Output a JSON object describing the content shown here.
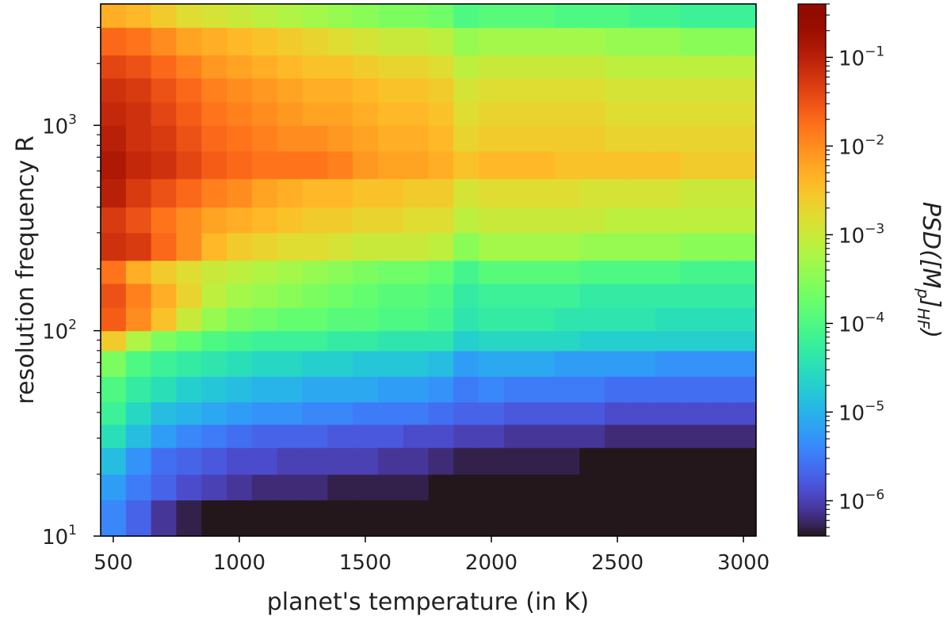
{
  "chart_data": {
    "type": "heatmap",
    "title": "",
    "xlabel": "planet's temperature (in K)",
    "ylabel": "resolution frequency R",
    "colorbar_label": "PSD([M_p]_HF)",
    "colorbar_label_parts": {
      "base": "PSD([M",
      "sub1": "p",
      "mid": "]",
      "sub2": "HF",
      "end": ")"
    },
    "colormap": "turbo",
    "xlim": [
      450,
      3050
    ],
    "x_ticks": [
      500,
      1000,
      1500,
      2000,
      2500,
      3000
    ],
    "x_tick_labels": [
      "500",
      "1000",
      "1500",
      "2000",
      "2500",
      "3000"
    ],
    "ylim": [
      10,
      3900
    ],
    "y_scale": "log",
    "y_major_ticks": [
      {
        "value": 10,
        "base": "10",
        "exp": "1"
      },
      {
        "value": 100,
        "base": "10",
        "exp": "2"
      },
      {
        "value": 1000,
        "base": "10",
        "exp": "3"
      }
    ],
    "colorbar_range": [
      4e-07,
      0.4
    ],
    "colorbar_scale": "log",
    "colorbar_ticks": [
      {
        "value": 0.1,
        "base": "10",
        "exp": "−1"
      },
      {
        "value": 0.01,
        "base": "10",
        "exp": "−2"
      },
      {
        "value": 0.001,
        "base": "10",
        "exp": "−3"
      },
      {
        "value": 0.0001,
        "base": "10",
        "exp": "−4"
      },
      {
        "value": 1e-05,
        "base": "10",
        "exp": "−5"
      },
      {
        "value": 1e-06,
        "base": "10",
        "exp": "−6"
      }
    ],
    "temperatures": [
      500,
      600,
      700,
      800,
      900,
      1000,
      1100,
      1200,
      1300,
      1400,
      1500,
      1600,
      1700,
      1800,
      1900,
      2000,
      2100,
      2200,
      2300,
      2400,
      2500,
      2600,
      2700,
      2800,
      2900,
      3000
    ],
    "frequency_edges": [
      10,
      15,
      20,
      27,
      35,
      45,
      60,
      80,
      100,
      130,
      170,
      220,
      300,
      400,
      550,
      750,
      1000,
      1300,
      1700,
      2200,
      3000,
      3900
    ],
    "log10_psd": [
      [
        -5.4,
        -5.7,
        -6.1,
        -6.3,
        -6.5,
        -6.7,
        -6.8,
        -6.9,
        -6.9,
        -6.9,
        -6.9,
        -6.9,
        -6.9,
        -6.9,
        -6.9,
        -6.8,
        -6.8,
        -6.8,
        -6.9,
        -6.9,
        -6.8,
        -6.8,
        -6.9,
        -6.9,
        -6.9,
        -6.9
      ],
      [
        -5.2,
        -5.5,
        -5.7,
        -5.9,
        -6.0,
        -6.1,
        -6.2,
        -6.2,
        -6.2,
        -6.3,
        -6.3,
        -6.3,
        -6.3,
        -6.4,
        -6.5,
        -6.4,
        -6.5,
        -6.5,
        -6.5,
        -6.5,
        -6.5,
        -6.5,
        -6.6,
        -6.6,
        -6.6,
        -6.6
      ],
      [
        -4.9,
        -5.3,
        -5.6,
        -5.7,
        -5.8,
        -5.9,
        -5.9,
        -6.0,
        -6.0,
        -6.0,
        -6.0,
        -6.1,
        -6.1,
        -6.2,
        -6.3,
        -6.3,
        -6.3,
        -6.3,
        -6.3,
        -6.4,
        -6.4,
        -6.4,
        -6.5,
        -6.5,
        -6.5,
        -6.5
      ],
      [
        -4.5,
        -4.9,
        -5.2,
        -5.4,
        -5.5,
        -5.6,
        -5.7,
        -5.7,
        -5.7,
        -5.8,
        -5.8,
        -5.8,
        -5.9,
        -5.9,
        -6.0,
        -6.0,
        -6.1,
        -6.1,
        -6.1,
        -6.1,
        -6.2,
        -6.2,
        -6.2,
        -6.2,
        -6.2,
        -6.2
      ],
      [
        -4.2,
        -4.6,
        -4.9,
        -5.0,
        -5.1,
        -5.2,
        -5.3,
        -5.3,
        -5.4,
        -5.4,
        -5.5,
        -5.5,
        -5.5,
        -5.6,
        -5.7,
        -5.7,
        -5.8,
        -5.8,
        -5.8,
        -5.8,
        -5.9,
        -5.9,
        -5.9,
        -5.9,
        -5.9,
        -5.9
      ],
      [
        -4.0,
        -4.3,
        -4.5,
        -4.7,
        -4.8,
        -4.9,
        -5.0,
        -5.0,
        -5.1,
        -5.1,
        -5.1,
        -5.2,
        -5.2,
        -5.3,
        -5.5,
        -5.4,
        -5.5,
        -5.5,
        -5.5,
        -5.5,
        -5.6,
        -5.6,
        -5.6,
        -5.6,
        -5.6,
        -5.6
      ],
      [
        -3.6,
        -4.0,
        -4.2,
        -4.3,
        -4.4,
        -4.5,
        -4.6,
        -4.6,
        -4.7,
        -4.7,
        -4.8,
        -4.8,
        -4.8,
        -4.9,
        -5.2,
        -5.1,
        -5.1,
        -5.1,
        -5.2,
        -5.2,
        -5.2,
        -5.2,
        -5.3,
        -5.3,
        -5.3,
        -5.3
      ],
      [
        -2.6,
        -3.2,
        -3.6,
        -3.8,
        -4.0,
        -4.1,
        -4.2,
        -4.2,
        -4.2,
        -4.3,
        -4.3,
        -4.4,
        -4.4,
        -4.4,
        -4.7,
        -4.6,
        -4.6,
        -4.6,
        -4.6,
        -4.7,
        -4.7,
        -4.7,
        -4.7,
        -4.7,
        -4.7,
        -4.7
      ],
      [
        -1.6,
        -2.0,
        -2.5,
        -3.0,
        -3.4,
        -3.6,
        -3.7,
        -3.8,
        -3.8,
        -3.9,
        -3.9,
        -4.0,
        -4.0,
        -4.1,
        -4.4,
        -4.3,
        -4.3,
        -4.3,
        -4.4,
        -4.4,
        -4.4,
        -4.4,
        -4.5,
        -4.5,
        -4.5,
        -4.5
      ],
      [
        -1.5,
        -1.9,
        -2.3,
        -2.7,
        -3.1,
        -3.3,
        -3.4,
        -3.5,
        -3.6,
        -3.7,
        -3.8,
        -3.9,
        -3.9,
        -4.0,
        -4.3,
        -4.2,
        -4.2,
        -4.2,
        -4.2,
        -4.3,
        -4.3,
        -4.3,
        -4.3,
        -4.3,
        -4.3,
        -4.3
      ],
      [
        -1.8,
        -2.3,
        -2.6,
        -2.8,
        -3.0,
        -3.1,
        -3.2,
        -3.3,
        -3.4,
        -3.5,
        -3.6,
        -3.7,
        -3.7,
        -3.8,
        -4.1,
        -3.9,
        -3.9,
        -3.9,
        -3.9,
        -4.0,
        -4.0,
        -4.0,
        -4.0,
        -4.1,
        -4.1,
        -4.1
      ],
      [
        -1.2,
        -1.3,
        -1.7,
        -2.0,
        -2.4,
        -2.6,
        -2.7,
        -2.8,
        -2.8,
        -2.9,
        -3.0,
        -3.0,
        -3.0,
        -3.1,
        -3.5,
        -3.3,
        -3.3,
        -3.3,
        -3.3,
        -3.4,
        -3.4,
        -3.4,
        -3.4,
        -3.5,
        -3.5,
        -3.5
      ],
      [
        -1.3,
        -1.5,
        -1.8,
        -2.0,
        -2.2,
        -2.3,
        -2.4,
        -2.5,
        -2.6,
        -2.6,
        -2.7,
        -2.7,
        -2.8,
        -2.8,
        -3.1,
        -3.0,
        -3.0,
        -3.0,
        -3.0,
        -3.0,
        -3.1,
        -3.1,
        -3.1,
        -3.1,
        -3.1,
        -3.1
      ],
      [
        -1.0,
        -1.3,
        -1.5,
        -1.7,
        -1.9,
        -2.0,
        -2.2,
        -2.3,
        -2.4,
        -2.4,
        -2.5,
        -2.5,
        -2.6,
        -2.6,
        -2.9,
        -2.8,
        -2.8,
        -2.8,
        -2.8,
        -2.9,
        -2.9,
        -2.9,
        -2.9,
        -3.0,
        -3.0,
        -3.0
      ],
      [
        -0.9,
        -1.1,
        -1.2,
        -1.4,
        -1.6,
        -1.7,
        -1.8,
        -1.8,
        -1.8,
        -1.9,
        -2.1,
        -2.2,
        -2.2,
        -2.3,
        -2.5,
        -2.4,
        -2.4,
        -2.4,
        -2.5,
        -2.5,
        -2.5,
        -2.5,
        -2.5,
        -2.6,
        -2.6,
        -2.6
      ],
      [
        -1.0,
        -1.2,
        -1.3,
        -1.5,
        -1.7,
        -1.8,
        -1.9,
        -2.0,
        -2.0,
        -2.1,
        -2.2,
        -2.3,
        -2.3,
        -2.4,
        -2.7,
        -2.6,
        -2.6,
        -2.6,
        -2.6,
        -2.6,
        -2.7,
        -2.7,
        -2.7,
        -2.7,
        -2.7,
        -2.7
      ],
      [
        -1.1,
        -1.2,
        -1.4,
        -1.6,
        -1.8,
        -1.9,
        -2.0,
        -2.1,
        -2.2,
        -2.2,
        -2.3,
        -2.4,
        -2.4,
        -2.5,
        -2.8,
        -2.7,
        -2.7,
        -2.7,
        -2.7,
        -2.7,
        -2.8,
        -2.8,
        -2.8,
        -2.8,
        -2.8,
        -2.8
      ],
      [
        -1.2,
        -1.3,
        -1.5,
        -1.7,
        -1.9,
        -2.0,
        -2.1,
        -2.2,
        -2.3,
        -2.3,
        -2.4,
        -2.5,
        -2.5,
        -2.6,
        -2.9,
        -2.8,
        -2.8,
        -2.8,
        -2.8,
        -2.8,
        -2.9,
        -2.9,
        -2.9,
        -2.9,
        -2.9,
        -2.9
      ],
      [
        -1.4,
        -1.5,
        -1.7,
        -1.9,
        -2.1,
        -2.2,
        -2.3,
        -2.4,
        -2.5,
        -2.5,
        -2.6,
        -2.7,
        -2.7,
        -2.8,
        -3.1,
        -3.0,
        -3.0,
        -3.0,
        -3.0,
        -3.0,
        -3.1,
        -3.1,
        -3.1,
        -3.1,
        -3.1,
        -3.1
      ],
      [
        -1.7,
        -1.8,
        -2.0,
        -2.2,
        -2.3,
        -2.4,
        -2.5,
        -2.6,
        -2.7,
        -2.8,
        -2.9,
        -3.0,
        -3.0,
        -3.1,
        -3.4,
        -3.3,
        -3.3,
        -3.3,
        -3.3,
        -3.3,
        -3.4,
        -3.4,
        -3.4,
        -3.5,
        -3.5,
        -3.5
      ],
      [
        -2.3,
        -2.4,
        -2.6,
        -2.8,
        -2.9,
        -3.0,
        -3.1,
        -3.2,
        -3.3,
        -3.4,
        -3.5,
        -3.6,
        -3.6,
        -3.7,
        -4.0,
        -3.9,
        -3.9,
        -3.9,
        -4.0,
        -4.0,
        -4.0,
        -4.1,
        -4.1,
        -4.2,
        -4.2,
        -4.2
      ]
    ]
  }
}
